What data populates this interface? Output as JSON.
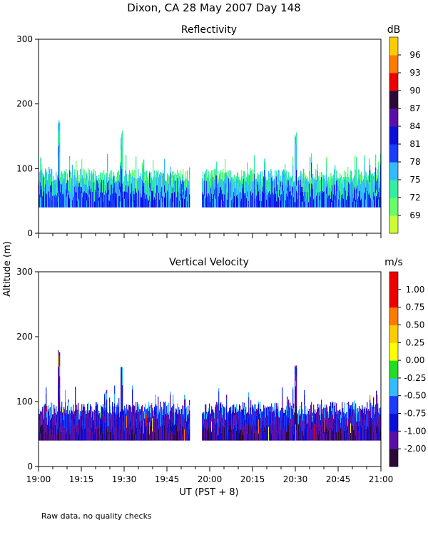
{
  "title": "Dixon, CA 28 May 2007  Day 148",
  "ylabel": "Altitude (m)",
  "xlabel": "UT  (PST + 8)",
  "footnote": "Raw data, no quality checks",
  "chart_data": [
    {
      "type": "heatmap",
      "title": "Reflectivity",
      "ylim": [
        0,
        300
      ],
      "yticks": [
        0,
        100,
        200,
        300
      ],
      "xlim": [
        "19:00",
        "21:00"
      ],
      "xticks": [
        "19:00",
        "19:15",
        "19:30",
        "19:45",
        "20:00",
        "20:15",
        "20:30",
        "20:45",
        "21:00"
      ],
      "data_gap": [
        "19:53",
        "19:57"
      ],
      "colorbar": {
        "unit": "dB",
        "labels": [
          "69",
          "72",
          "75",
          "78",
          "81",
          "84",
          "87",
          "90",
          "93",
          "96"
        ],
        "colors": [
          "#ccff33",
          "#66ff66",
          "#33eea0",
          "#33bbff",
          "#1a3cff",
          "#0a10d8",
          "#5a10a8",
          "#2a0838",
          "#ee0000",
          "#ff7a00",
          "#ffcc00"
        ]
      },
      "echo_base_m": 40,
      "typical_top_m": [
        80,
        100
      ],
      "peak_tops": [
        {
          "time": "19:07",
          "top_m": 180
        },
        {
          "time": "19:29",
          "top_m": 160
        },
        {
          "time": "20:30",
          "top_m": 160
        }
      ]
    },
    {
      "type": "heatmap",
      "title": "Vertical Velocity",
      "ylim": [
        0,
        300
      ],
      "yticks": [
        0,
        100,
        200,
        300
      ],
      "xlim": [
        "19:00",
        "21:00"
      ],
      "xticks": [
        "19:00",
        "19:15",
        "19:30",
        "19:45",
        "20:00",
        "20:15",
        "20:30",
        "20:45",
        "21:00"
      ],
      "data_gap": [
        "19:53",
        "19:57"
      ],
      "colorbar": {
        "unit": "m/s",
        "labels": [
          "-2.00",
          "-1.00",
          "-0.75",
          "-0.50",
          "-0.25",
          "0.00",
          "0.25",
          "0.50",
          "0.75",
          "1.00"
        ],
        "colors": [
          "#2a0838",
          "#5a10a8",
          "#0a10d8",
          "#1a3cff",
          "#33bbff",
          "#22dd22",
          "#ffff00",
          "#ffcc00",
          "#ff7a00",
          "#ee0000",
          "#ee0000"
        ]
      },
      "echo_base_m": 40,
      "typical_top_m": [
        80,
        100
      ],
      "peak_tops": [
        {
          "time": "19:07",
          "top_m": 180
        },
        {
          "time": "19:29",
          "top_m": 160
        },
        {
          "time": "20:30",
          "top_m": 160
        }
      ]
    }
  ]
}
